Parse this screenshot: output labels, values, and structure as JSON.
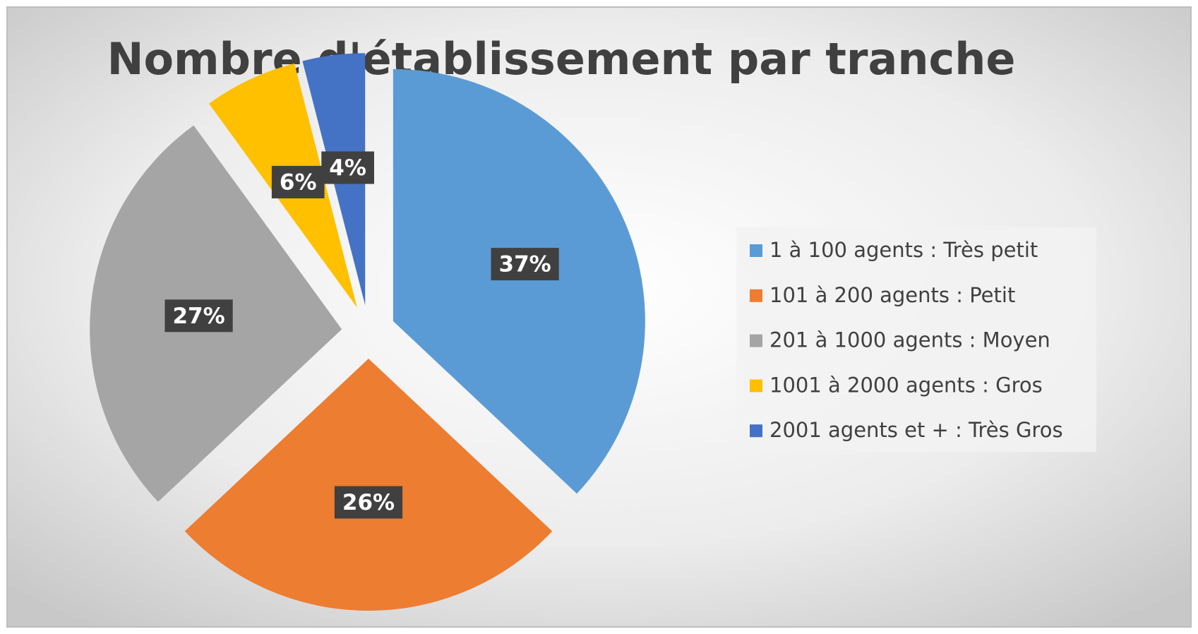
{
  "chart_data": {
    "type": "pie",
    "title": "Nombre d'établissement par tranche",
    "categories": [
      "1 à 100 agents : Très petit",
      "101 à 200 agents : Petit",
      "201 à 1000 agents : Moyen",
      "1001 à 2000 agents : Gros",
      "2001 agents et + : Très Gros"
    ],
    "values": [
      37,
      26,
      27,
      6,
      4
    ],
    "value_labels": [
      "37%",
      "26%",
      "27%",
      "6%",
      "4%"
    ],
    "colors": [
      "#5b9bd5",
      "#ed7d31",
      "#a5a5a5",
      "#ffc000",
      "#4472c4"
    ],
    "legend": "right"
  }
}
